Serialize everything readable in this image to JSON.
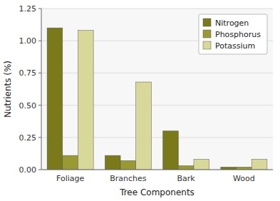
{
  "chart_data": {
    "type": "bar",
    "xlabel": "Tree Components",
    "ylabel": "Nutrients (%)",
    "categories": [
      "Foliage",
      "Branches",
      "Bark",
      "Wood"
    ],
    "series": [
      {
        "name": "Nitrogen",
        "color": "#7a7a1a",
        "values": [
          1.1,
          0.11,
          0.3,
          0.02
        ]
      },
      {
        "name": "Phosphorus",
        "color": "#9a9a35",
        "values": [
          0.11,
          0.07,
          0.03,
          0.02
        ]
      },
      {
        "name": "Potassium",
        "color": "#d8d89a",
        "values": [
          1.08,
          0.68,
          0.08,
          0.08
        ]
      }
    ],
    "ylim": [
      0,
      1.25
    ],
    "yticks": [
      {
        "value": 0,
        "label": "0.00"
      },
      0.25,
      {
        "value": 0.5,
        "label": "0.50"
      },
      0.75,
      {
        "value": 1,
        "label": "1.00"
      },
      1.25
    ],
    "grid": true,
    "legend": "upper right"
  }
}
